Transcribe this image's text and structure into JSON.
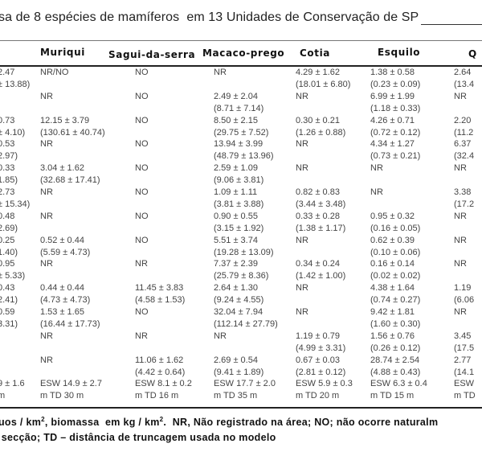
{
  "title": "sa de 8 espécies de mamíferos  em 13 Unidades de Conservação de SP",
  "headers": [
    "",
    "Muriqui",
    "Sagui-da-serra",
    "Macaco-prego",
    "Cotia",
    "Esquilo",
    "Q"
  ],
  "rows": [
    [
      [
        "2.47",
        "± 13.88)"
      ],
      [
        "NR/NO",
        ""
      ],
      [
        "NO",
        ""
      ],
      [
        "NR",
        ""
      ],
      [
        "4.29 ± 1.62",
        "(18.01 ± 6.80)"
      ],
      [
        "1.38 ± 0.58",
        "(0.23 ± 0.09)"
      ],
      [
        "2.64",
        "(13.4"
      ]
    ],
    [
      [
        "",
        ""
      ],
      [
        "NR",
        ""
      ],
      [
        "NO",
        ""
      ],
      [
        "2.49 ± 2.04",
        "(8.71 ± 7.14)"
      ],
      [
        "NR",
        ""
      ],
      [
        "6.99 ± 1.99",
        "(1.18 ± 0.33)"
      ],
      [
        "NR",
        ""
      ]
    ],
    [
      [
        "0.73",
        "± 4.10)"
      ],
      [
        "12.15 ± 3.79",
        "(130.61 ± 40.74)"
      ],
      [
        "NO",
        ""
      ],
      [
        "8.50 ± 2.15",
        "(29.75 ± 7.52)"
      ],
      [
        "0.30 ± 0.21",
        "(1.26 ± 0.88)"
      ],
      [
        "4.26 ± 0.71",
        "(0.72 ± 0.12)"
      ],
      [
        "2.20",
        "(11.2"
      ]
    ],
    [
      [
        "0.53",
        "2.97)"
      ],
      [
        "NR",
        ""
      ],
      [
        "NO",
        ""
      ],
      [
        "13.94 ± 3.99",
        "(48.79 ± 13.96)"
      ],
      [
        "NR",
        ""
      ],
      [
        "4.34 ± 1.27",
        "(0.73 ± 0.21)"
      ],
      [
        "6.37",
        "(32.4"
      ]
    ],
    [
      [
        "0.33",
        "1.85)"
      ],
      [
        "3.04 ± 1.62",
        "(32.68 ± 17.41)"
      ],
      [
        "NO",
        ""
      ],
      [
        "2.59 ± 1.09",
        "(9.06 ± 3.81)"
      ],
      [
        "NR",
        ""
      ],
      [
        "NR",
        ""
      ],
      [
        "NR",
        ""
      ]
    ],
    [
      [
        "2.73",
        "± 15.34)"
      ],
      [
        "NR",
        ""
      ],
      [
        "NO",
        ""
      ],
      [
        "1.09 ± 1.11",
        "(3.81 ± 3.88)"
      ],
      [
        "0.82 ± 0.83",
        "(3.44 ± 3.48)"
      ],
      [
        "NR",
        ""
      ],
      [
        "3.38",
        "(17.2"
      ]
    ],
    [
      [
        "0.48",
        "2.69)"
      ],
      [
        "NR",
        ""
      ],
      [
        "NO",
        ""
      ],
      [
        "0.90 ± 0.55",
        "(3.15 ± 1.92)"
      ],
      [
        "0.33 ± 0.28",
        "(1.38 ± 1.17)"
      ],
      [
        "0.95 ± 0.32",
        "(0.16 ± 0.05)"
      ],
      [
        "NR",
        ""
      ]
    ],
    [
      [
        "0.25",
        "1.40)"
      ],
      [
        "0.52 ± 0.44",
        "(5.59 ± 4.73)"
      ],
      [
        "NO",
        ""
      ],
      [
        "5.51 ± 3.74",
        "(19.28 ± 13.09)"
      ],
      [
        "NR",
        ""
      ],
      [
        "0.62 ± 0.39",
        "(0.10 ± 0.06)"
      ],
      [
        "NR",
        ""
      ]
    ],
    [
      [
        "0.95",
        "± 5.33)"
      ],
      [
        "NR",
        ""
      ],
      [
        "NR",
        ""
      ],
      [
        "7.37 ± 2.39",
        "(25.79 ± 8.36)"
      ],
      [
        "0.34 ± 0.24",
        "(1.42 ± 1.00)"
      ],
      [
        "0.16 ± 0.14",
        "(0.02 ± 0.02)"
      ],
      [
        "NR",
        ""
      ]
    ],
    [
      [
        "0.43",
        "2.41)"
      ],
      [
        "0.44 ± 0.44",
        "(4.73 ± 4.73)"
      ],
      [
        "11.45 ± 3.83",
        "(4.58 ± 1.53)"
      ],
      [
        "2.64 ± 1.30",
        "(9.24 ± 4.55)"
      ],
      [
        "NR",
        ""
      ],
      [
        "4.38 ± 1.64",
        "(0.74 ± 0.27)"
      ],
      [
        "1.19",
        "(6.06"
      ]
    ],
    [
      [
        "0.59",
        "3.31)"
      ],
      [
        "1.53 ± 1.65",
        "(16.44 ± 17.73)"
      ],
      [
        "NO",
        ""
      ],
      [
        "32.04 ± 7.94",
        "(112.14 ± 27.79)"
      ],
      [
        "NR",
        ""
      ],
      [
        "9.42 ± 1.81",
        "(1.60 ± 0.30)"
      ],
      [
        "NR",
        ""
      ]
    ],
    [
      [
        "",
        ""
      ],
      [
        "NR",
        ""
      ],
      [
        "NR",
        ""
      ],
      [
        "NR",
        ""
      ],
      [
        "1.19 ± 0.79",
        "(4.99 ± 3.31)"
      ],
      [
        "1.56 ± 0.76",
        "(0.26 ± 0.12)"
      ],
      [
        "3.45",
        "(17.5"
      ]
    ],
    [
      [
        "",
        ""
      ],
      [
        "NR",
        ""
      ],
      [
        "11.06 ± 1.62",
        "(4.42 ± 0.64)"
      ],
      [
        "2.69 ± 0.54",
        "(9.41 ± 1.89)"
      ],
      [
        "0.67 ± 0.03",
        "(2.81 ± 0.12)"
      ],
      [
        "28.74 ± 2.54",
        "(4.88 ± 0.43)"
      ],
      [
        "2.77",
        "(14.1"
      ]
    ],
    [
      [
        "9 ± 1.6",
        "m"
      ],
      [
        "ESW 14.9 ± 2.7",
        "m TD 30 m"
      ],
      [
        "ESW 8.1 ± 0.2",
        "m TD 16 m"
      ],
      [
        "ESW 17.7 ± 2.0",
        "m TD 35 m"
      ],
      [
        "ESW 5.9 ± 0.3",
        "m TD 20 m"
      ],
      [
        "ESW 6.3 ± 0.4",
        "m TD 15 m"
      ],
      [
        "ESW",
        "m TD"
      ]
    ]
  ],
  "footnote": {
    "l1a": "uos / km",
    "sup1": "2",
    "l1b": ", biomassa  em kg / km",
    "sup2": "2",
    "l1c": ".  NR, Não registrado na área; NO; não ocorre naturalm",
    "l2": " secção; TD – distância de truncagem usada no modelo"
  }
}
